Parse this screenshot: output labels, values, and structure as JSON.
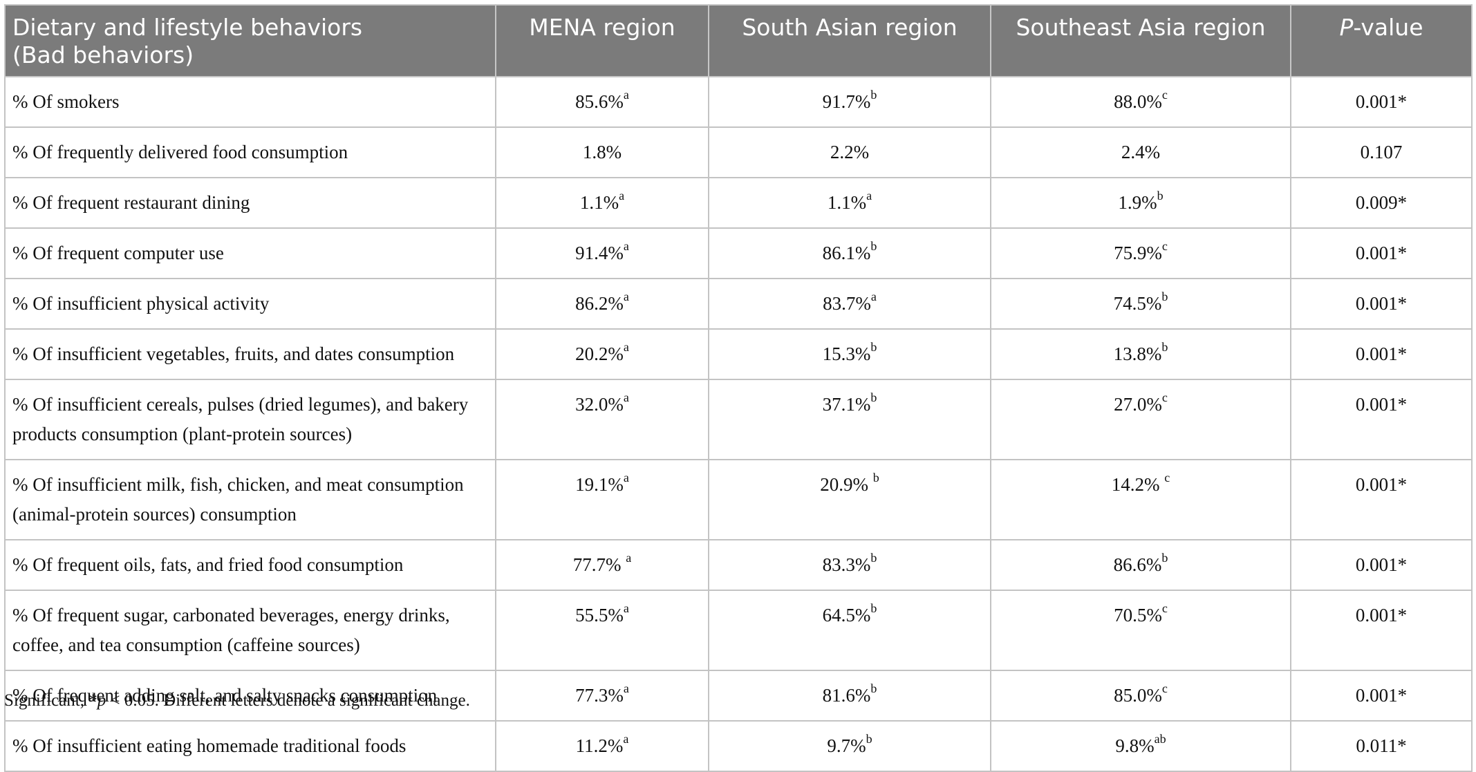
{
  "table": {
    "headers": {
      "col1_line1": "Dietary and lifestyle behaviors",
      "col1_line2": "(Bad behaviors)",
      "mena": "MENA region",
      "south_asian": "South Asian region",
      "southeast_asia": "Southeast Asia region",
      "pvalue_italic": "P",
      "pvalue_rest": "-value"
    },
    "rows": [
      {
        "label": "% Of smokers",
        "mena": "85.6%",
        "mena_sup": "a",
        "sa": "91.7%",
        "sa_sup": "b",
        "sea": "88.0%",
        "sea_sup": "c",
        "p": "0.001*"
      },
      {
        "label": "% Of frequently delivered food consumption",
        "mena": "1.8%",
        "mena_sup": "",
        "sa": "2.2%",
        "sa_sup": "",
        "sea": "2.4%",
        "sea_sup": "",
        "p": "0.107"
      },
      {
        "label": "% Of frequent restaurant dining",
        "mena": "1.1%",
        "mena_sup": "a",
        "sa": "1.1%",
        "sa_sup": "a",
        "sea": "1.9%",
        "sea_sup": "b",
        "p": "0.009*"
      },
      {
        "label": "% Of frequent computer use",
        "mena": "91.4%",
        "mena_sup": "a",
        "sa": "86.1%",
        "sa_sup": "b",
        "sea": "75.9%",
        "sea_sup": "c",
        "p": "0.001*"
      },
      {
        "label": "% Of insufficient physical activity",
        "mena": "86.2%",
        "mena_sup": "a",
        "sa": "83.7%",
        "sa_sup": "a",
        "sea": "74.5%",
        "sea_sup": "b",
        "p": "0.001*"
      },
      {
        "label": "% Of insufficient vegetables, fruits, and dates consumption",
        "mena": "20.2%",
        "mena_sup": "a",
        "sa": "15.3%",
        "sa_sup": "b",
        "sea": "13.8%",
        "sea_sup": "b",
        "p": "0.001*"
      },
      {
        "label": "% Of insufficient cereals, pulses (dried legumes), and bakery products consumption (plant-protein sources)",
        "mena": "32.0%",
        "mena_sup": "a",
        "sa": "37.1%",
        "sa_sup": "b",
        "sea": "27.0%",
        "sea_sup": "c",
        "p": "0.001*"
      },
      {
        "label": "% Of insufficient milk, fish, chicken, and meat consumption (animal-protein sources) consumption",
        "mena": "19.1%",
        "mena_sup": "a",
        "sa": "20.9% ",
        "sa_sup": "b",
        "sea": "14.2% ",
        "sea_sup": "c",
        "p": "0.001*"
      },
      {
        "label": "% Of frequent oils, fats, and fried food consumption",
        "mena": "77.7% ",
        "mena_sup": "a",
        "sa": "83.3%",
        "sa_sup": "b",
        "sea": "86.6%",
        "sea_sup": "b",
        "p": "0.001*"
      },
      {
        "label": "% Of frequent sugar, carbonated beverages, energy drinks, coffee, and tea consumption (caffeine sources)",
        "mena": "55.5%",
        "mena_sup": "a",
        "sa": "64.5%",
        "sa_sup": "b",
        "sea": "70.5%",
        "sea_sup": "c",
        "p": "0.001*"
      },
      {
        "label": "% Of frequent adding salt, and salty snacks consumption",
        "mena": "77.3%",
        "mena_sup": "a",
        "sa": "81.6%",
        "sa_sup": "b",
        "sea": "85.0%",
        "sea_sup": "c",
        "p": "0.001*"
      },
      {
        "label": "% Of insufficient eating homemade traditional foods",
        "mena": "11.2%",
        "mena_sup": "a",
        "sa": "9.7%",
        "sa_sup": "b",
        "sea": "9.8%",
        "sea_sup": "ab",
        "p": "0.011*"
      }
    ]
  },
  "footnote": {
    "prefix": "Significant, *",
    "p_italic": "p",
    "suffix": " < 0.05. Different letters denote a significant change."
  }
}
